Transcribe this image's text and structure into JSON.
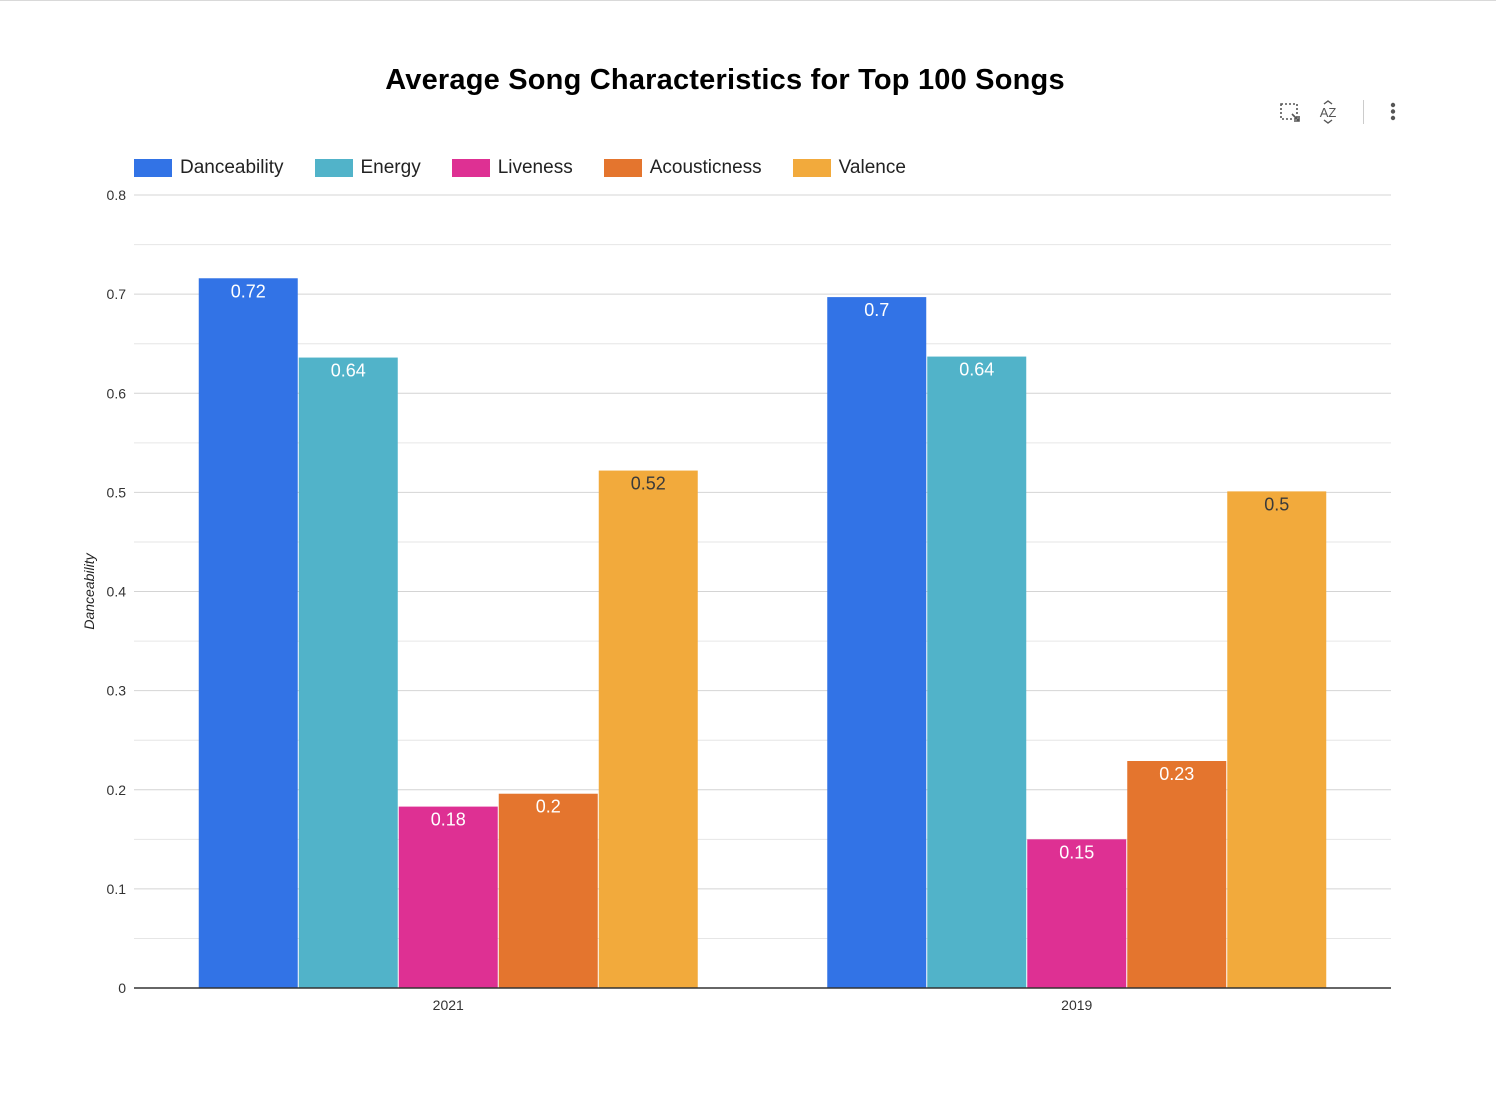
{
  "chart_data": {
    "type": "bar",
    "title": "Average Song Characteristics for Top 100 Songs",
    "xlabel": "",
    "ylabel": "Danceability",
    "ylim": [
      0,
      0.8
    ],
    "yticks": [
      "0",
      "0.1",
      "0.2",
      "0.3",
      "0.4",
      "0.5",
      "0.6",
      "0.7",
      "0.8"
    ],
    "categories": [
      "2021",
      "2019"
    ],
    "grid": true,
    "legend": "top-left",
    "series": [
      {
        "name": "Danceability",
        "color": "#3273e6",
        "values": [
          0.716,
          0.697
        ],
        "labels": [
          "0.72",
          "0.7"
        ]
      },
      {
        "name": "Energy",
        "color": "#51b3c9",
        "values": [
          0.636,
          0.637
        ],
        "labels": [
          "0.64",
          "0.64"
        ]
      },
      {
        "name": "Liveness",
        "color": "#de3093",
        "values": [
          0.183,
          0.15
        ],
        "labels": [
          "0.18",
          "0.15"
        ]
      },
      {
        "name": "Acousticness",
        "color": "#e4752e",
        "values": [
          0.196,
          0.229
        ],
        "labels": [
          "0.2",
          "0.23"
        ]
      },
      {
        "name": "Valence",
        "color": "#f2aa3c",
        "values": [
          0.522,
          0.501
        ],
        "labels": [
          "0.52",
          "0.5"
        ]
      }
    ]
  },
  "toolbar": {
    "icons": [
      "select-region-icon",
      "sort-az-icon",
      "more-vert-icon"
    ]
  }
}
